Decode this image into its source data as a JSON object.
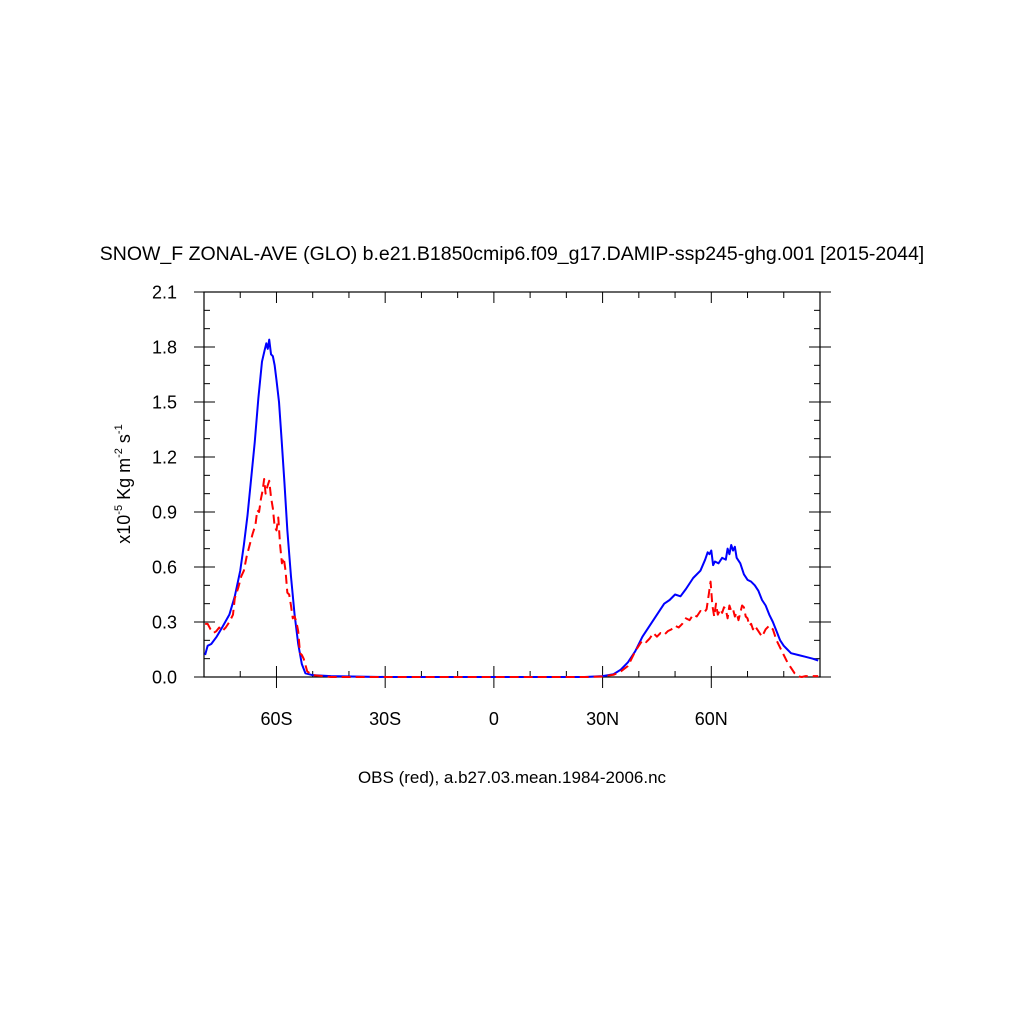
{
  "chart_data": {
    "type": "line",
    "title": "SNOW_F ZONAL-AVE (GLO) b.e21.B1850cmip6.f09_g17.DAMIP-ssp245-ghg.001 [2015-2044]",
    "xlabel": "OBS (red), a.b27.03.mean.1984-2006.nc",
    "ylabel": {
      "prefix": "x10",
      "exp1": "-5",
      "mid": " Kg m",
      "exp2": "-2",
      "mid2": " s",
      "exp3": "-1"
    },
    "xlim": [
      -80,
      90
    ],
    "ylim": [
      0,
      2.1
    ],
    "x_ticks": [
      {
        "value": -60,
        "label": "60S"
      },
      {
        "value": -30,
        "label": "30S"
      },
      {
        "value": 0,
        "label": "0"
      },
      {
        "value": 30,
        "label": "30N"
      },
      {
        "value": 60,
        "label": "60N"
      }
    ],
    "y_ticks": [
      {
        "value": 0,
        "label": "0.0"
      },
      {
        "value": 0.3,
        "label": "0.3"
      },
      {
        "value": 0.6,
        "label": "0.6"
      },
      {
        "value": 0.9,
        "label": "0.9"
      },
      {
        "value": 1.2,
        "label": "1.2"
      },
      {
        "value": 1.5,
        "label": "1.5"
      },
      {
        "value": 1.8,
        "label": "1.8"
      },
      {
        "value": 2.1,
        "label": "2.1"
      }
    ],
    "grid": false,
    "series": [
      {
        "color": "#0000ff",
        "style": "solid",
        "points": [
          [
            -79.7,
            0.12
          ],
          [
            -79,
            0.17
          ],
          [
            -78,
            0.18
          ],
          [
            -76.5,
            0.22
          ],
          [
            -75,
            0.27
          ],
          [
            -73,
            0.34
          ],
          [
            -71.5,
            0.44
          ],
          [
            -70,
            0.58
          ],
          [
            -69,
            0.72
          ],
          [
            -68,
            0.88
          ],
          [
            -67,
            1.08
          ],
          [
            -66,
            1.28
          ],
          [
            -65,
            1.52
          ],
          [
            -64,
            1.72
          ],
          [
            -63.3,
            1.78
          ],
          [
            -62.8,
            1.82
          ],
          [
            -62.4,
            1.79
          ],
          [
            -62,
            1.84
          ],
          [
            -61.5,
            1.76
          ],
          [
            -61,
            1.75
          ],
          [
            -60.5,
            1.7
          ],
          [
            -60,
            1.62
          ],
          [
            -59.3,
            1.5
          ],
          [
            -58.6,
            1.3
          ],
          [
            -57.8,
            1.06
          ],
          [
            -57,
            0.8
          ],
          [
            -56,
            0.55
          ],
          [
            -55,
            0.34
          ],
          [
            -54,
            0.18
          ],
          [
            -53,
            0.07
          ],
          [
            -52,
            0.02
          ],
          [
            -50,
            0.01
          ],
          [
            -45,
            0.005
          ],
          [
            -30,
            0.0
          ],
          [
            0,
            0.0
          ],
          [
            25,
            0.0
          ],
          [
            30,
            0.005
          ],
          [
            33,
            0.015
          ],
          [
            35,
            0.04
          ],
          [
            37,
            0.08
          ],
          [
            39,
            0.14
          ],
          [
            41,
            0.22
          ],
          [
            43,
            0.28
          ],
          [
            45,
            0.34
          ],
          [
            47,
            0.4
          ],
          [
            48.5,
            0.42
          ],
          [
            50,
            0.45
          ],
          [
            51.5,
            0.44
          ],
          [
            53,
            0.48
          ],
          [
            55,
            0.54
          ],
          [
            57,
            0.58
          ],
          [
            58.3,
            0.64
          ],
          [
            59,
            0.68
          ],
          [
            59.5,
            0.67
          ],
          [
            60,
            0.69
          ],
          [
            60.5,
            0.61
          ],
          [
            61,
            0.63
          ],
          [
            62,
            0.62
          ],
          [
            63,
            0.65
          ],
          [
            64,
            0.64
          ],
          [
            64.5,
            0.7
          ],
          [
            65,
            0.67
          ],
          [
            65.5,
            0.72
          ],
          [
            66,
            0.69
          ],
          [
            66.5,
            0.71
          ],
          [
            67,
            0.65
          ],
          [
            68,
            0.62
          ],
          [
            69,
            0.56
          ],
          [
            70,
            0.53
          ],
          [
            71,
            0.52
          ],
          [
            72,
            0.5
          ],
          [
            73,
            0.47
          ],
          [
            74,
            0.42
          ],
          [
            75,
            0.39
          ],
          [
            76,
            0.34
          ],
          [
            77,
            0.3
          ],
          [
            78,
            0.25
          ],
          [
            79,
            0.2
          ],
          [
            80,
            0.17
          ],
          [
            81,
            0.15
          ],
          [
            82,
            0.13
          ],
          [
            84,
            0.12
          ],
          [
            86,
            0.11
          ],
          [
            88,
            0.1
          ],
          [
            89.5,
            0.09
          ]
        ]
      },
      {
        "color": "#ff0000",
        "style": "dashed",
        "points": [
          [
            -79.7,
            0.29
          ],
          [
            -79,
            0.29
          ],
          [
            -78.2,
            0.26
          ],
          [
            -77.4,
            0.24
          ],
          [
            -76.6,
            0.25
          ],
          [
            -75.8,
            0.27
          ],
          [
            -75,
            0.25
          ],
          [
            -74,
            0.27
          ],
          [
            -73,
            0.3
          ],
          [
            -72,
            0.34
          ],
          [
            -71.5,
            0.43
          ],
          [
            -70.5,
            0.49
          ],
          [
            -69.7,
            0.55
          ],
          [
            -69,
            0.58
          ],
          [
            -68.2,
            0.66
          ],
          [
            -67.4,
            0.72
          ],
          [
            -66.6,
            0.78
          ],
          [
            -65.8,
            0.83
          ],
          [
            -65.3,
            0.91
          ],
          [
            -64.8,
            0.9
          ],
          [
            -64.3,
            0.97
          ],
          [
            -63.8,
            1.02
          ],
          [
            -63.4,
            1.08
          ],
          [
            -63,
            1.0
          ],
          [
            -62.5,
            1.04
          ],
          [
            -62,
            1.07
          ],
          [
            -61.5,
            0.98
          ],
          [
            -61,
            0.92
          ],
          [
            -60.5,
            0.82
          ],
          [
            -60,
            0.8
          ],
          [
            -59.5,
            0.87
          ],
          [
            -59,
            0.72
          ],
          [
            -58.5,
            0.62
          ],
          [
            -58,
            0.65
          ],
          [
            -57.5,
            0.58
          ],
          [
            -57,
            0.46
          ],
          [
            -56.5,
            0.45
          ],
          [
            -56,
            0.39
          ],
          [
            -55.5,
            0.32
          ],
          [
            -55,
            0.33
          ],
          [
            -54.5,
            0.3
          ],
          [
            -54,
            0.25
          ],
          [
            -53.5,
            0.13
          ],
          [
            -53,
            0.12
          ],
          [
            -52.5,
            0.1
          ],
          [
            -51.5,
            0.03
          ],
          [
            -50,
            0.01
          ],
          [
            -45,
            0.0
          ],
          [
            -30,
            0.0
          ],
          [
            0,
            0.0
          ],
          [
            26,
            0.0
          ],
          [
            30,
            0.003
          ],
          [
            33,
            0.012
          ],
          [
            35,
            0.03
          ],
          [
            37,
            0.06
          ],
          [
            38,
            0.1
          ],
          [
            39,
            0.14
          ],
          [
            40,
            0.17
          ],
          [
            41,
            0.2
          ],
          [
            42,
            0.19
          ],
          [
            43,
            0.21
          ],
          [
            44,
            0.24
          ],
          [
            45,
            0.22
          ],
          [
            46,
            0.24
          ],
          [
            47,
            0.23
          ],
          [
            48,
            0.25
          ],
          [
            49,
            0.26
          ],
          [
            50,
            0.28
          ],
          [
            51,
            0.27
          ],
          [
            52,
            0.29
          ],
          [
            53,
            0.32
          ],
          [
            54,
            0.31
          ],
          [
            55,
            0.34
          ],
          [
            56,
            0.33
          ],
          [
            57,
            0.36
          ],
          [
            58,
            0.35
          ],
          [
            58.7,
            0.37
          ],
          [
            59.3,
            0.45
          ],
          [
            59.8,
            0.52
          ],
          [
            60.3,
            0.39
          ],
          [
            60.8,
            0.33
          ],
          [
            61.3,
            0.4
          ],
          [
            61.8,
            0.34
          ],
          [
            62.5,
            0.37
          ],
          [
            63,
            0.35
          ],
          [
            63.5,
            0.38
          ],
          [
            64,
            0.37
          ],
          [
            64.5,
            0.32
          ],
          [
            65,
            0.39
          ],
          [
            65.5,
            0.36
          ],
          [
            66,
            0.37
          ],
          [
            66.5,
            0.33
          ],
          [
            67,
            0.35
          ],
          [
            67.5,
            0.31
          ],
          [
            68,
            0.35
          ],
          [
            68.5,
            0.39
          ],
          [
            69,
            0.38
          ],
          [
            69.5,
            0.33
          ],
          [
            70,
            0.32
          ],
          [
            70.5,
            0.28
          ],
          [
            71,
            0.29
          ],
          [
            71.5,
            0.26
          ],
          [
            72,
            0.28
          ],
          [
            73,
            0.25
          ],
          [
            74,
            0.22
          ],
          [
            75,
            0.26
          ],
          [
            76,
            0.28
          ],
          [
            77,
            0.26
          ],
          [
            78,
            0.2
          ],
          [
            79,
            0.16
          ],
          [
            80,
            0.12
          ],
          [
            81,
            0.08
          ],
          [
            82,
            0.05
          ],
          [
            83,
            0.02
          ],
          [
            84,
            0.003
          ],
          [
            85,
            0.0
          ],
          [
            86,
            0.005
          ],
          [
            88,
            0.005
          ],
          [
            89.5,
            0.005
          ]
        ]
      }
    ]
  }
}
